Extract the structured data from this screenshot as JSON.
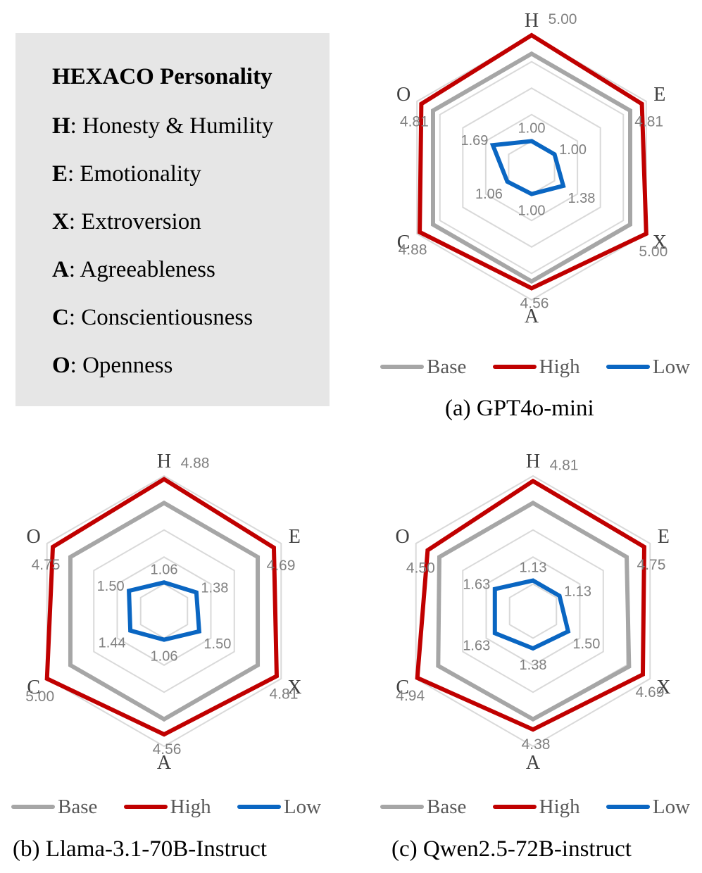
{
  "key_box": {
    "title": "HEXACO Personality",
    "items": [
      {
        "letter": "H",
        "text": ": Honesty & Humility"
      },
      {
        "letter": "E",
        "text": ": Emotionality"
      },
      {
        "letter": "X",
        "text": ": Extroversion"
      },
      {
        "letter": "A",
        "text": ": Agreeableness"
      },
      {
        "letter": "C",
        "text": ": Conscientiousness"
      },
      {
        "letter": "O",
        "text": ": Openness"
      }
    ]
  },
  "colors": {
    "base": "#a6a6a6",
    "high": "#c00000",
    "low": "#0a66c2",
    "grid": "#d9d9d9",
    "label": "#808080"
  },
  "chart_data": [
    {
      "type": "radar",
      "caption": "(a) GPT4o-mini",
      "axes": [
        "H",
        "E",
        "X",
        "A",
        "C",
        "O"
      ],
      "rlim": [
        0,
        5
      ],
      "legend": [
        "Base",
        "High",
        "Low"
      ],
      "series": [
        {
          "name": "Base",
          "values": [
            4.3,
            4.3,
            4.3,
            4.3,
            4.3,
            4.3
          ]
        },
        {
          "name": "High",
          "values": [
            5.0,
            4.81,
            5.0,
            4.56,
            4.88,
            4.81
          ]
        },
        {
          "name": "Low",
          "values": [
            1.0,
            1.0,
            1.38,
            1.0,
            1.06,
            1.69
          ]
        }
      ],
      "high_labels": [
        "5.00",
        "4.81",
        "5.00",
        "4.56",
        "4.88",
        "4.81"
      ],
      "low_labels": [
        "1.00",
        "1.00",
        "1.38",
        "1.00",
        "1.06",
        "1.69"
      ]
    },
    {
      "type": "radar",
      "caption": "(b) Llama-3.1-70B-Instruct",
      "axes": [
        "H",
        "E",
        "X",
        "A",
        "C",
        "O"
      ],
      "rlim": [
        0,
        5
      ],
      "legend": [
        "Base",
        "High",
        "Low"
      ],
      "series": [
        {
          "name": "Base",
          "values": [
            4.0,
            4.0,
            4.0,
            4.0,
            4.0,
            4.0
          ]
        },
        {
          "name": "High",
          "values": [
            4.88,
            4.69,
            4.81,
            4.56,
            5.0,
            4.75
          ]
        },
        {
          "name": "Low",
          "values": [
            1.06,
            1.38,
            1.5,
            1.06,
            1.44,
            1.5
          ]
        }
      ],
      "high_labels": [
        "4.88",
        "4.69",
        "4.81",
        "4.56",
        "5.00",
        "4.75"
      ],
      "low_labels": [
        "1.06",
        "1.38",
        "1.50",
        "1.06",
        "1.44",
        "1.50"
      ]
    },
    {
      "type": "radar",
      "caption": "(c) Qwen2.5-72B-instruct",
      "axes": [
        "H",
        "E",
        "X",
        "A",
        "C",
        "O"
      ],
      "rlim": [
        0,
        5
      ],
      "legend": [
        "Base",
        "High",
        "Low"
      ],
      "series": [
        {
          "name": "Base",
          "values": [
            4.0,
            4.0,
            4.1,
            4.0,
            4.05,
            4.0
          ]
        },
        {
          "name": "High",
          "values": [
            4.81,
            4.75,
            4.69,
            4.38,
            4.94,
            4.5
          ]
        },
        {
          "name": "Low",
          "values": [
            1.13,
            1.13,
            1.5,
            1.38,
            1.63,
            1.63
          ]
        }
      ],
      "high_labels": [
        "4.81",
        "4.75",
        "4.69",
        "4.38",
        "4.94",
        "4.50"
      ],
      "low_labels": [
        "1.13",
        "1.13",
        "1.50",
        "1.38",
        "1.63",
        "1.63"
      ]
    }
  ]
}
